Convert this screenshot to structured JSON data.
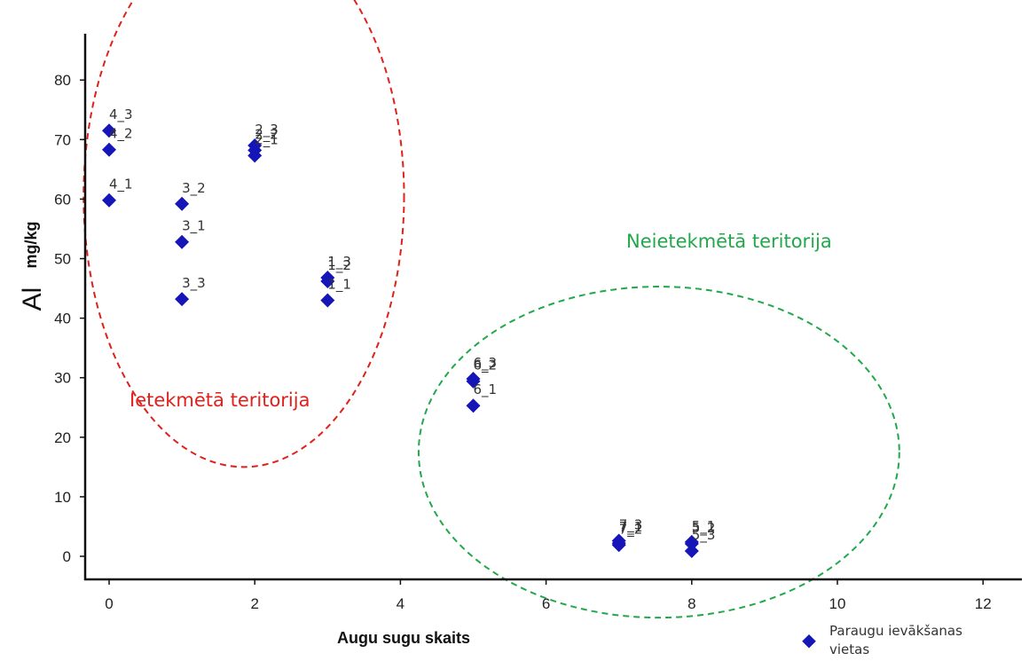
{
  "chart_data": {
    "type": "scatter",
    "xlabel": "Augu sugu skaits",
    "ylabel": "Al",
    "ylabel_unit": "mg/kg",
    "xlim": [
      -0.4,
      12.5
    ],
    "ylim": [
      -4,
      88
    ],
    "xticks": [
      0,
      2,
      4,
      6,
      8,
      10,
      12
    ],
    "yticks": [
      0,
      10,
      20,
      30,
      40,
      50,
      60,
      70,
      80
    ],
    "grid": false,
    "marker_color": "#1515b8",
    "series": [
      {
        "name": "Paraugu ievākšanas vietas",
        "points": [
          {
            "x": 0,
            "y": 71.5,
            "label": "4_3"
          },
          {
            "x": 0,
            "y": 68.3,
            "label": "4_2"
          },
          {
            "x": 0,
            "y": 59.8,
            "label": "4_1"
          },
          {
            "x": 1,
            "y": 59.2,
            "label": "3_2"
          },
          {
            "x": 1,
            "y": 52.8,
            "label": "3_1"
          },
          {
            "x": 1,
            "y": 43.2,
            "label": "3_3"
          },
          {
            "x": 2,
            "y": 69.0,
            "label": "2_3"
          },
          {
            "x": 2,
            "y": 68.2,
            "label": "2_2"
          },
          {
            "x": 2,
            "y": 67.3,
            "label": "2_1"
          },
          {
            "x": 3,
            "y": 46.8,
            "label": "1_3"
          },
          {
            "x": 3,
            "y": 46.2,
            "label": "1_2"
          },
          {
            "x": 3,
            "y": 43.0,
            "label": "1_1"
          },
          {
            "x": 5,
            "y": 29.8,
            "label": "6_3"
          },
          {
            "x": 5,
            "y": 29.4,
            "label": "6_2"
          },
          {
            "x": 5,
            "y": 25.3,
            "label": "6_1"
          },
          {
            "x": 7,
            "y": 2.6,
            "label": "7_3"
          },
          {
            "x": 7,
            "y": 2.2,
            "label": "7_1"
          },
          {
            "x": 7,
            "y": 1.9,
            "label": "7_2"
          },
          {
            "x": 8,
            "y": 2.4,
            "label": "5_1"
          },
          {
            "x": 8,
            "y": 2.1,
            "label": "5_2"
          },
          {
            "x": 8,
            "y": 0.9,
            "label": "5_3"
          }
        ]
      }
    ],
    "annotations": [
      {
        "text": "Ietekmētā teritorija",
        "color": "#e0201b",
        "ellipse": {
          "cx": 1.85,
          "cy": 60.5,
          "rx": 2.2,
          "ry": 45.5
        }
      },
      {
        "text": "Neietekmētā teritorija",
        "color": "#22a84a",
        "ellipse": {
          "cx": 7.55,
          "cy": 17.5,
          "rx": 3.3,
          "ry": 27.8
        }
      }
    ],
    "legend": {
      "placement": "bottom-right",
      "label": "Paraugu ievākšanas vietas"
    }
  }
}
